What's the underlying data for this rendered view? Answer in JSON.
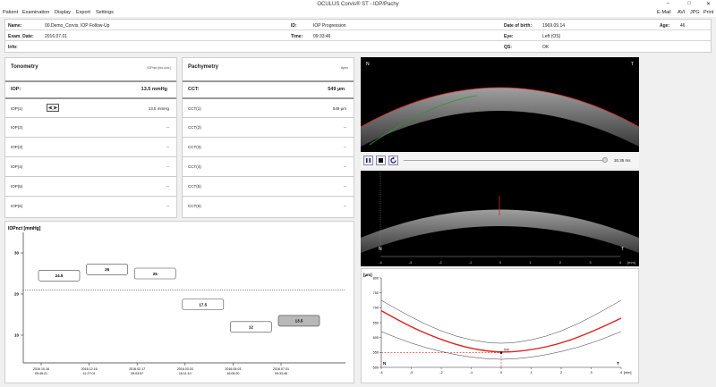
{
  "window": {
    "title": "OCULUS Corvis® ST - IOP/Pachy"
  },
  "menu": {
    "left": [
      "Patient",
      "Examination",
      "Display",
      "Export",
      "Settings"
    ],
    "right": [
      "E-Mail",
      "AVI",
      "JPG",
      "Print"
    ]
  },
  "patient": {
    "name_label": "Name:",
    "name": "00.Demo_Corvis, IOP Follow-Up",
    "id_label": "ID:",
    "id": "IOP Progression",
    "dob_label": "Date of birth:",
    "dob": "1969.09.14",
    "age_label": "Age:",
    "age": "46",
    "exam_label": "Exam. Date:",
    "exam_date": "2016.07.01",
    "time_label": "Time:",
    "time": "09:33:46",
    "eye_label": "Eye:",
    "eye": "Left (OS)",
    "info_label": "Info:",
    "info": "",
    "qs_label": "QS:",
    "qs": "OK"
  },
  "tonometry": {
    "title": "Tonometry",
    "subtitle": "IOPnct (bio.corr.)",
    "main_label": "IOP:",
    "main_value": "13.5 mmHg",
    "rows": [
      {
        "label": "IOP(1)",
        "value": "13.5 mmHg"
      },
      {
        "label": "IOP(2)",
        "value": "--"
      },
      {
        "label": "IOP(3)",
        "value": "--"
      },
      {
        "label": "IOP(4)",
        "value": "--"
      },
      {
        "label": "IOP(5)",
        "value": "--"
      },
      {
        "label": "IOP(6)",
        "value": "--"
      }
    ]
  },
  "pachymetry": {
    "title": "Pachymetry",
    "subtitle": "Apex",
    "main_label": "CCT:",
    "main_value": "549 µm",
    "rows": [
      {
        "label": "CCT(1)",
        "value": "549 µm"
      },
      {
        "label": "CCT(2)",
        "value": "--"
      },
      {
        "label": "CCT(3)",
        "value": "--"
      },
      {
        "label": "CCT(4)",
        "value": "--"
      },
      {
        "label": "CCT(5)",
        "value": "--"
      },
      {
        "label": "CCT(6)",
        "value": "--"
      }
    ]
  },
  "video": {
    "corner_left": "N",
    "corner_right": "T",
    "time": "30.35 ms"
  },
  "scheimpflug2": {
    "corner_left": "N",
    "corner_right": "T",
    "ticks": [
      "-4",
      "-3",
      "-2",
      "-1",
      "0",
      "1",
      "2",
      "3",
      "4"
    ],
    "unit": "[mm]"
  },
  "icons": {
    "pause": "pause-icon",
    "stop": "stop-icon",
    "replay": "replay-icon",
    "eye": "eye-icon"
  },
  "colors": {
    "accent_red": "#e02020",
    "green": "#2a9a2a",
    "selected_box": "#b8b8b8"
  },
  "chart_data": [
    {
      "type": "line",
      "ylabel": "IOPnct [mmHg]",
      "ylim": [
        5,
        35
      ],
      "yticks": [
        "30",
        "20",
        "10"
      ],
      "reference_line": 21,
      "points": [
        {
          "date": "2016.10.16",
          "time": "09:45:21",
          "value": 24.5,
          "label": "24.5"
        },
        {
          "date": "2016.12.16",
          "time": "11:27:01",
          "value": 26,
          "label": "26"
        },
        {
          "date": "2016.02.17",
          "time": "09:03:57",
          "value": 25,
          "label": "25"
        },
        {
          "date": "2016.03.03",
          "time": "16:11:10",
          "value": 17.5,
          "label": "17.5"
        },
        {
          "date": "2016.05.03",
          "time": "16:05:20",
          "value": 12,
          "label": "12"
        },
        {
          "date": "2016.07.01",
          "time": "09:33:46",
          "value": 13.5,
          "label": "13.5",
          "selected": true
        }
      ]
    },
    {
      "type": "line",
      "ylabel": "[µm]",
      "xlabel": "[mm]",
      "ylim": [
        500,
        800
      ],
      "xlim": [
        -4,
        4
      ],
      "yticks": [
        "800",
        "750",
        "700",
        "650",
        "600",
        "550",
        "500"
      ],
      "xticks": [
        "-4",
        "-3",
        "-2",
        "-1",
        "0",
        "1",
        "2",
        "3",
        "4"
      ],
      "corner_left": "N",
      "corner_right": "T",
      "apex_label": "549",
      "series": [
        {
          "role": "upper",
          "x": [
            -4,
            -3,
            -2,
            -1,
            0,
            1,
            2,
            3,
            4
          ],
          "y": [
            725,
            668,
            620,
            590,
            578,
            590,
            620,
            668,
            725
          ]
        },
        {
          "role": "patient",
          "x": [
            -4,
            -3,
            -2,
            -1,
            0,
            1,
            2,
            3,
            4
          ],
          "y": [
            690,
            635,
            592,
            562,
            549,
            558,
            580,
            618,
            665
          ]
        },
        {
          "role": "lower",
          "x": [
            -4,
            -3,
            -2,
            -1,
            0,
            1,
            2,
            3,
            4
          ],
          "y": [
            620,
            580,
            552,
            533,
            525,
            533,
            552,
            580,
            620
          ]
        }
      ]
    }
  ]
}
